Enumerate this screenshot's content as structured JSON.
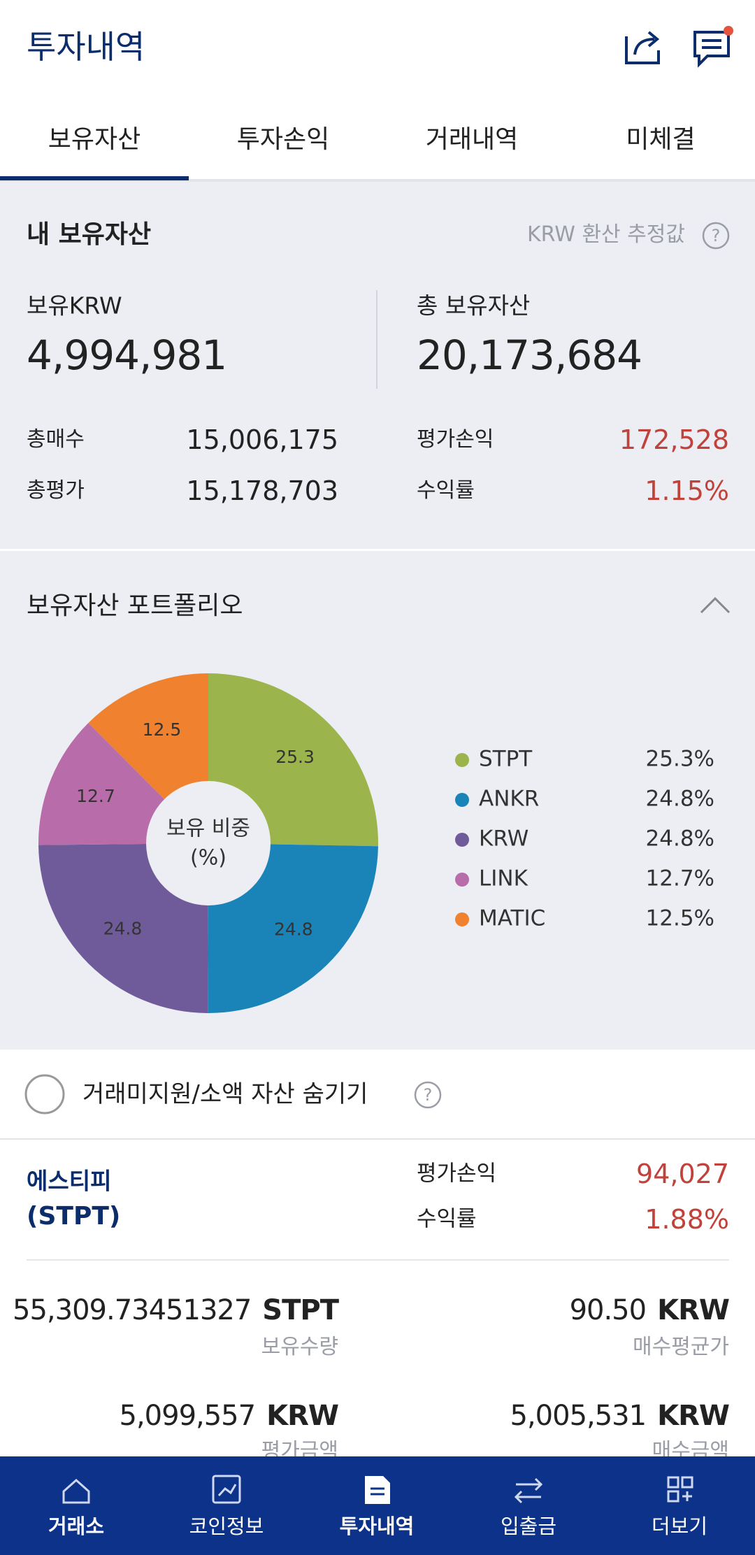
{
  "header": {
    "title": "투자내역"
  },
  "tabs": [
    "보유자산",
    "투자손익",
    "거래내역",
    "미체결"
  ],
  "summary": {
    "title": "내 보유자산",
    "note": "KRW 환산 추정값",
    "krw_label": "보유KRW",
    "krw_value": "4,994,981",
    "total_label": "총 보유자산",
    "total_value": "20,173,684",
    "rows": [
      [
        "총매수",
        "15,006,175"
      ],
      [
        "총평가",
        "15,178,703"
      ],
      [
        "평가손익",
        "172,528"
      ],
      [
        "수익률",
        "1.15%"
      ]
    ]
  },
  "chart_data": {
    "type": "donut",
    "title": "보유자산 포트폴리오",
    "center_label": [
      "보유 비중",
      "(%)"
    ],
    "categories": [
      "STPT",
      "ANKR",
      "KRW",
      "LINK",
      "MATIC"
    ],
    "values": [
      25.3,
      24.8,
      24.8,
      12.7,
      12.5
    ],
    "value_labels": [
      "25.3%",
      "24.8%",
      "24.8%",
      "12.7%",
      "12.5%"
    ],
    "colors": [
      "#9bb44c",
      "#1a84b8",
      "#6f5b9a",
      "#b86ca9",
      "#f0812e"
    ]
  },
  "filter": {
    "label": "거래미지원/소액 자산 숨기기"
  },
  "holdings": [
    {
      "name": "에스티피",
      "symbol": "(STPT)",
      "pnl_label": "평가손익",
      "pnl": "94,027",
      "rate_label": "수익률",
      "rate": "1.88%",
      "quantity": "55,309.73451327",
      "quantity_unit": "STPT",
      "quantity_label": "보유수량",
      "avg_price": "90.50",
      "avg_unit": "KRW",
      "avg_label": "매수평균가",
      "eval_amount": "5,099,557",
      "eval_unit": "KRW",
      "eval_label": "평가금액",
      "buy_amount": "5,005,531",
      "buy_unit": "KRW",
      "buy_label": "매수금액"
    }
  ],
  "nav": [
    "거래소",
    "코인정보",
    "투자내역",
    "입출금",
    "더보기"
  ]
}
